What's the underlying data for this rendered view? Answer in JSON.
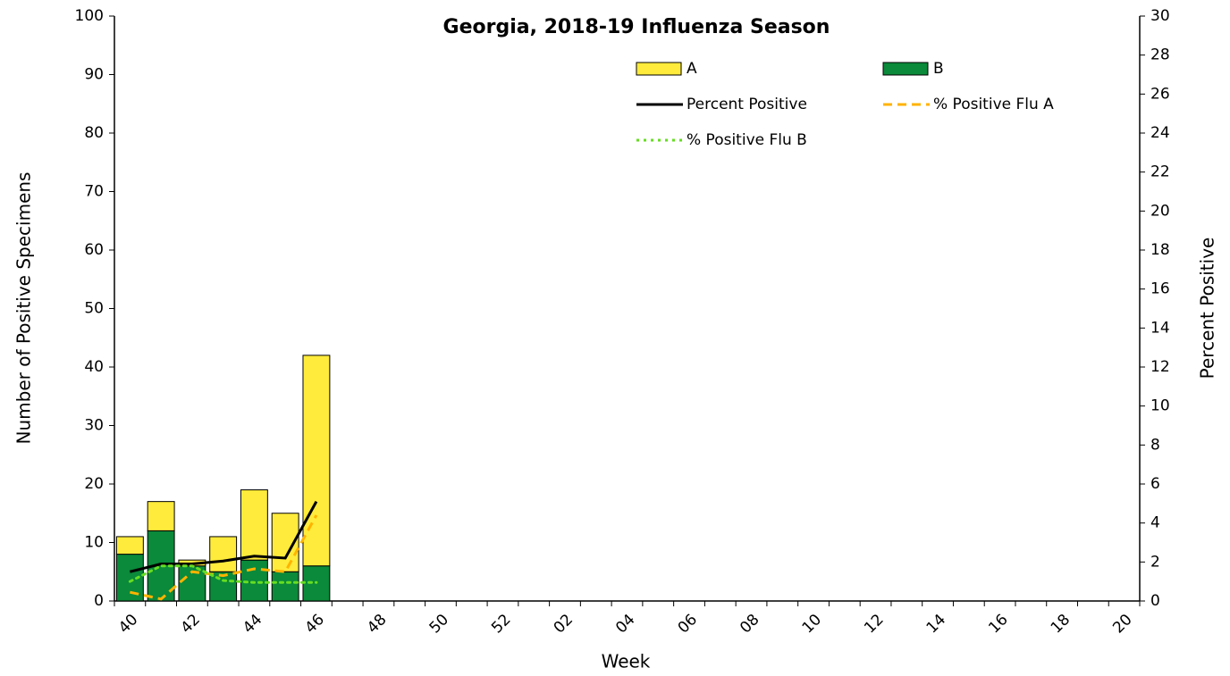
{
  "chart_data": {
    "type": "bar",
    "title": "Georgia, 2018-19 Influenza Season",
    "x_label": "Week",
    "y_label": "Number of Positive Specimens",
    "y2_label": "Percent Positive",
    "categories": [
      "40",
      null,
      "42",
      null,
      "44",
      null,
      "46",
      null,
      "48",
      null,
      "50",
      null,
      "52",
      null,
      "02",
      null,
      "04",
      null,
      "06",
      null,
      "08",
      null,
      "10",
      null,
      "12",
      null,
      "14",
      null,
      "16",
      null,
      "18",
      null,
      "20"
    ],
    "ylim": [
      0,
      100
    ],
    "yticks": [
      0,
      10,
      20,
      30,
      40,
      50,
      60,
      70,
      80,
      90,
      100
    ],
    "y2lim": [
      0,
      30
    ],
    "y2ticks": [
      0,
      2,
      4,
      6,
      8,
      10,
      12,
      14,
      16,
      18,
      20,
      22,
      24,
      26,
      28,
      30
    ],
    "series": [
      {
        "name": "A",
        "type": "bar",
        "color": "#ffeb3b",
        "values": [
          3,
          5,
          1,
          6,
          12,
          10,
          36,
          null,
          null,
          null,
          null,
          null,
          null,
          null,
          null,
          null,
          null,
          null,
          null,
          null,
          null,
          null,
          null,
          null,
          null,
          null,
          null,
          null,
          null,
          null,
          null,
          null,
          null
        ]
      },
      {
        "name": "B",
        "type": "bar",
        "color": "#0a8a3a",
        "values": [
          8,
          12,
          6,
          5,
          7,
          5,
          6,
          null,
          null,
          null,
          null,
          null,
          null,
          null,
          null,
          null,
          null,
          null,
          null,
          null,
          null,
          null,
          null,
          null,
          null,
          null,
          null,
          null,
          null,
          null,
          null,
          null,
          null
        ]
      },
      {
        "name": "Percent Positive",
        "type": "line",
        "axis": "y2",
        "style": "solid",
        "color": "#000000",
        "values": [
          1.5,
          1.9,
          1.9,
          2.05,
          2.3,
          2.2,
          5.1,
          null,
          null,
          null,
          null,
          null,
          null,
          null,
          null,
          null,
          null,
          null,
          null,
          null,
          null,
          null,
          null,
          null,
          null,
          null,
          null,
          null,
          null,
          null,
          null,
          null,
          null
        ]
      },
      {
        "name": "% Positive Flu A",
        "type": "line",
        "axis": "y2",
        "style": "dashed",
        "color": "#ffb300",
        "values": [
          0.45,
          0.1,
          1.5,
          1.3,
          1.65,
          1.5,
          4.4,
          null,
          null,
          null,
          null,
          null,
          null,
          null,
          null,
          null,
          null,
          null,
          null,
          null,
          null,
          null,
          null,
          null,
          null,
          null,
          null,
          null,
          null,
          null,
          null,
          null,
          null
        ]
      },
      {
        "name": "% Positive Flu B",
        "type": "line",
        "axis": "y2",
        "style": "dotted",
        "color": "#66dd22",
        "values": [
          1.0,
          1.8,
          1.8,
          1.05,
          0.95,
          0.95,
          0.95,
          null,
          null,
          null,
          null,
          null,
          null,
          null,
          null,
          null,
          null,
          null,
          null,
          null,
          null,
          null,
          null,
          null,
          null,
          null,
          null,
          null,
          null,
          null,
          null,
          null,
          null
        ]
      }
    ]
  }
}
